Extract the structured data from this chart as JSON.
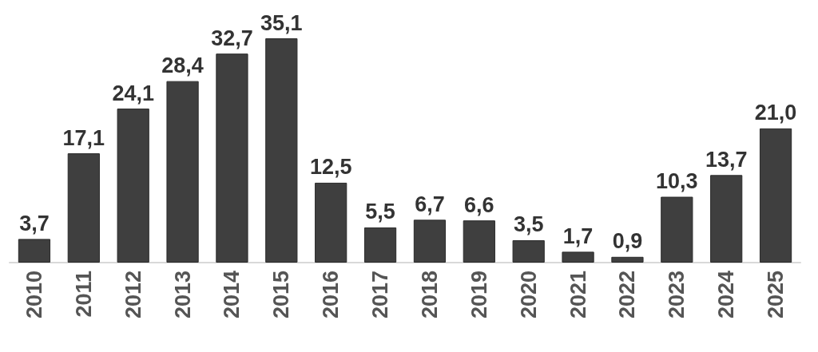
{
  "chart_data": {
    "type": "bar",
    "categories": [
      "2010",
      "2011",
      "2012",
      "2013",
      "2014",
      "2015",
      "2016",
      "2017",
      "2018",
      "2019",
      "2020",
      "2021",
      "2022",
      "2023",
      "2024",
      "2025"
    ],
    "values": [
      3.7,
      17.1,
      24.1,
      28.4,
      32.7,
      35.1,
      12.5,
      5.5,
      6.7,
      6.6,
      3.5,
      1.7,
      0.9,
      10.3,
      13.7,
      21.0
    ],
    "value_labels": [
      "3,7",
      "17,1",
      "24,1",
      "28,4",
      "32,7",
      "35,1",
      "12,5",
      "5,5",
      "6,7",
      "6,6",
      "3,5",
      "1,7",
      "0,9",
      "10,3",
      "13,7",
      "21,0"
    ],
    "color": "#3f3f3f"
  }
}
